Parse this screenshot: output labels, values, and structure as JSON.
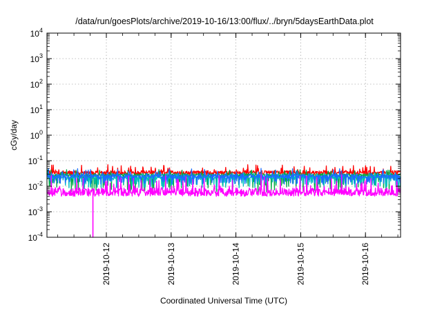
{
  "chart_data": {
    "type": "line",
    "title": "/data/run/goesPlots/archive/2019-10-16/13:00/flux/../bryn/5daysEarthData.plot",
    "xlabel": "Coordinated Universal Time (UTC)",
    "ylabel": "cGy/day",
    "yscale": "log",
    "ylim": [
      0.0001,
      10000
    ],
    "xlim": [
      "2019-10-11 02:00",
      "2019-10-16 13:00"
    ],
    "grid": true,
    "x_ticks": [
      "2019-10-12",
      "2019-10-13",
      "2019-10-14",
      "2019-10-15",
      "2019-10-16"
    ],
    "y_ticks": [
      {
        "base": "10",
        "exp": "-4"
      },
      {
        "base": "10",
        "exp": "-3"
      },
      {
        "base": "10",
        "exp": "-2"
      },
      {
        "base": "10",
        "exp": "-1"
      },
      {
        "base": "10",
        "exp": "0"
      },
      {
        "base": "10",
        "exp": "1"
      },
      {
        "base": "10",
        "exp": "2"
      },
      {
        "base": "10",
        "exp": "3"
      },
      {
        "base": "10",
        "exp": "4"
      }
    ],
    "series": [
      {
        "color": "#ff0000",
        "typical": 0.035,
        "low": 0.025,
        "high": 0.07
      },
      {
        "color": "#00aa44",
        "typical": 0.028,
        "low": 0.006,
        "high": 0.045
      },
      {
        "color": "#00bfbf",
        "typical": 0.022,
        "low": 0.008,
        "high": 0.035
      },
      {
        "color": "#1a6cff",
        "typical": 0.025,
        "low": 0.012,
        "high": 0.05
      },
      {
        "color": "#ff00ff",
        "typical": 0.006,
        "low": 0.004,
        "high": 0.03,
        "dropout": {
          "x": "2019-10-11 19:00",
          "y": 0.0001
        }
      }
    ]
  }
}
